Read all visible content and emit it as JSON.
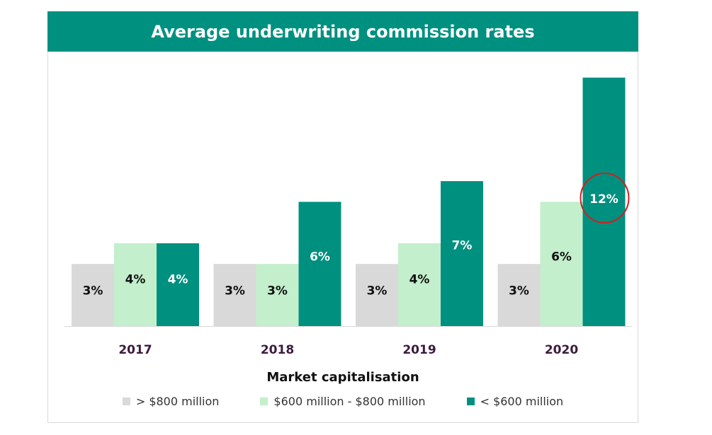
{
  "chart_data": {
    "type": "bar",
    "title": "Average underwriting commission rates",
    "xlabel": "Market capitalisation",
    "ylabel": "",
    "categories": [
      "2017",
      "2018",
      "2019",
      "2020"
    ],
    "series": [
      {
        "name": "> $800 million",
        "color": "#d9d9d9",
        "values": [
          3,
          3,
          3,
          3
        ],
        "labels": [
          "3%",
          "3%",
          "3%",
          "3%"
        ],
        "label_color": "#111111"
      },
      {
        "name": "$600 million - $800 million",
        "color": "#c3efcc",
        "values": [
          4,
          3,
          4,
          6
        ],
        "labels": [
          "4%",
          "3%",
          "4%",
          "6%"
        ],
        "label_color": "#111111"
      },
      {
        "name": "< $600 million",
        "color": "#009080",
        "values": [
          4,
          6,
          7,
          12
        ],
        "labels": [
          "4%",
          "6%",
          "7%",
          "12%"
        ],
        "label_color": "#ffffff"
      }
    ],
    "ylim": [
      0,
      12.4
    ],
    "grid": false,
    "legend_position": "bottom",
    "highlight": {
      "series": 2,
      "category": 3,
      "color": "#cc2222"
    }
  }
}
